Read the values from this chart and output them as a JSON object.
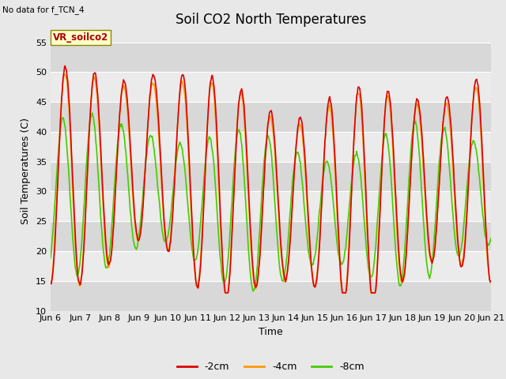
{
  "title": "Soil CO2 North Temperatures",
  "xlabel": "Time",
  "ylabel": "Soil Temperatures (C)",
  "ylim": [
    10,
    57
  ],
  "yticks": [
    10,
    15,
    20,
    25,
    30,
    35,
    40,
    45,
    50,
    55
  ],
  "no_data_text": "No data for f_TCN_4",
  "vr_label": "VR_soilco2",
  "legend_labels": [
    "-2cm",
    "-4cm",
    "-8cm"
  ],
  "line_colors": [
    "#dd0000",
    "#ff9900",
    "#44cc00"
  ],
  "bg_color": "#e8e8e8",
  "plot_bg_color": "#e8e8e8",
  "band_color_light": "#ebebeb",
  "band_color_dark": "#d8d8d8",
  "xtick_labels": [
    "Jun 6",
    "Jun 7",
    "Jun 8",
    "Jun 9",
    "Jun 10",
    "Jun 11",
    "Jun 12",
    "Jun 13",
    "Jun 14",
    "Jun 15",
    "Jun 16",
    "Jun 17",
    "Jun 18",
    "Jun 19",
    "Jun 20",
    "Jun 21"
  ],
  "figsize": [
    6.4,
    4.8
  ],
  "dpi": 100
}
